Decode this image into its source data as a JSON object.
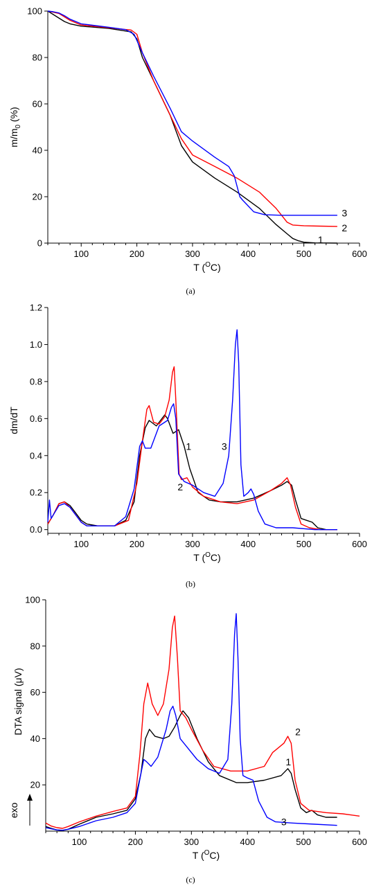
{
  "chart_data": [
    {
      "type": "line",
      "caption": "(a)",
      "xlabel": "T (",
      "xlabel_sup": "O",
      "xlabel_tail": "C)",
      "ylabel": "m/m",
      "ylabel_sub": "0",
      "ylabel_tail": " (%)",
      "xlim": [
        40,
        600
      ],
      "ylim": [
        0,
        100
      ],
      "xticks": [
        100,
        200,
        300,
        400,
        500,
        600
      ],
      "yticks": [
        0,
        20,
        40,
        60,
        80,
        100
      ],
      "grid": false,
      "series": [
        {
          "label": "1",
          "color": "#000000",
          "x": [
            40,
            50,
            60,
            70,
            80,
            100,
            150,
            190,
            200,
            210,
            230,
            260,
            280,
            300,
            340,
            380,
            420,
            450,
            470,
            480,
            490,
            500,
            520,
            560
          ],
          "y": [
            100,
            98.5,
            97,
            95.5,
            94.5,
            93.5,
            92.5,
            91,
            88,
            80,
            70,
            55,
            42,
            35,
            28,
            22,
            15,
            8,
            4,
            2,
            1,
            0.4,
            0.1,
            0
          ]
        },
        {
          "label": "2",
          "color": "#ff0000",
          "x": [
            40,
            50,
            60,
            70,
            80,
            100,
            150,
            190,
            200,
            210,
            230,
            260,
            280,
            300,
            340,
            380,
            420,
            450,
            460,
            470,
            480,
            500,
            530,
            560
          ],
          "y": [
            100,
            99.5,
            99,
            97.5,
            96,
            94,
            92.8,
            91.8,
            90,
            82,
            70,
            55,
            45,
            38,
            33,
            28,
            22,
            15,
            12,
            9,
            7.8,
            7.5,
            7.3,
            7.2
          ]
        },
        {
          "label": "3",
          "color": "#0000ff",
          "x": [
            40,
            50,
            60,
            70,
            80,
            100,
            150,
            180,
            195,
            210,
            230,
            260,
            280,
            300,
            340,
            365,
            375,
            385,
            390,
            400,
            410,
            430,
            460,
            500,
            560
          ],
          "y": [
            100,
            99.7,
            99.2,
            98,
            96.5,
            94.5,
            93,
            92,
            90,
            82,
            72,
            58,
            48,
            44,
            37,
            33,
            29,
            20,
            18.5,
            16,
            13.5,
            12.2,
            12,
            12,
            12
          ]
        }
      ],
      "annotations": [
        {
          "text": "1",
          "x": 530,
          "y": 1.5
        },
        {
          "text": "2",
          "x": 573,
          "y": 6.5
        },
        {
          "text": "3",
          "x": 573,
          "y": 13
        }
      ]
    },
    {
      "type": "line",
      "caption": "(b)",
      "xlabel": "T (",
      "xlabel_sup": "O",
      "xlabel_tail": "C)",
      "ylabel": "dm/dT",
      "ylabel_sub": "",
      "ylabel_tail": "",
      "xlim": [
        40,
        600
      ],
      "ylim": [
        -0.02,
        1.2
      ],
      "xticks": [
        100,
        200,
        300,
        400,
        500,
        600
      ],
      "yticks": [
        0.0,
        0.2,
        0.4,
        0.6,
        0.8,
        1.0,
        1.2
      ],
      "ytick_labels": [
        "0.0",
        "0.2",
        "0.4",
        "0.6",
        "0.8",
        "1.0",
        "1.2"
      ],
      "grid": false,
      "series": [
        {
          "label": "1",
          "color": "#000000",
          "x": [
            40,
            50,
            60,
            70,
            80,
            90,
            100,
            110,
            130,
            160,
            180,
            195,
            205,
            215,
            222,
            235,
            250,
            255,
            265,
            275,
            285,
            295,
            310,
            330,
            350,
            380,
            410,
            440,
            460,
            470,
            478,
            485,
            495,
            505,
            515,
            525,
            540,
            560
          ],
          "y": [
            0.03,
            0.08,
            0.14,
            0.15,
            0.13,
            0.09,
            0.05,
            0.03,
            0.02,
            0.02,
            0.05,
            0.15,
            0.4,
            0.55,
            0.59,
            0.56,
            0.62,
            0.6,
            0.52,
            0.54,
            0.45,
            0.33,
            0.2,
            0.16,
            0.15,
            0.15,
            0.17,
            0.21,
            0.24,
            0.26,
            0.24,
            0.16,
            0.06,
            0.05,
            0.04,
            0.01,
            0.0,
            0.0
          ]
        },
        {
          "label": "2",
          "color": "#ff0000",
          "x": [
            40,
            50,
            60,
            70,
            80,
            90,
            100,
            110,
            130,
            160,
            185,
            200,
            210,
            218,
            222,
            230,
            240,
            250,
            258,
            264,
            267,
            270,
            276,
            280,
            290,
            300,
            320,
            350,
            380,
            410,
            440,
            460,
            470,
            476,
            485,
            495,
            510,
            530,
            560
          ],
          "y": [
            0.03,
            0.08,
            0.14,
            0.15,
            0.12,
            0.08,
            0.04,
            0.02,
            0.02,
            0.02,
            0.05,
            0.25,
            0.48,
            0.65,
            0.67,
            0.58,
            0.57,
            0.61,
            0.7,
            0.85,
            0.88,
            0.7,
            0.3,
            0.27,
            0.28,
            0.23,
            0.18,
            0.15,
            0.14,
            0.16,
            0.21,
            0.25,
            0.28,
            0.24,
            0.12,
            0.03,
            0.01,
            0.0,
            0.0
          ]
        },
        {
          "label": "3",
          "color": "#0000ff",
          "x": [
            40,
            43,
            46,
            50,
            60,
            70,
            80,
            90,
            100,
            110,
            130,
            160,
            180,
            195,
            205,
            210,
            215,
            225,
            240,
            255,
            262,
            266,
            270,
            275,
            285,
            300,
            320,
            340,
            355,
            365,
            372,
            377,
            380,
            383,
            387,
            392,
            400,
            405,
            410,
            418,
            430,
            450,
            480,
            520,
            560
          ],
          "y": [
            0.04,
            0.16,
            0.06,
            0.08,
            0.13,
            0.14,
            0.12,
            0.08,
            0.04,
            0.02,
            0.02,
            0.02,
            0.07,
            0.22,
            0.45,
            0.48,
            0.44,
            0.44,
            0.56,
            0.59,
            0.66,
            0.68,
            0.6,
            0.3,
            0.26,
            0.24,
            0.2,
            0.18,
            0.25,
            0.4,
            0.7,
            1.0,
            1.08,
            0.9,
            0.35,
            0.18,
            0.2,
            0.22,
            0.19,
            0.1,
            0.03,
            0.01,
            0.01,
            0.0,
            0.0
          ]
        }
      ],
      "annotations": [
        {
          "text": "1",
          "x": 293,
          "y": 0.45
        },
        {
          "text": "2",
          "x": 278,
          "y": 0.23
        },
        {
          "text": "3",
          "x": 357,
          "y": 0.45
        }
      ]
    },
    {
      "type": "line",
      "caption": "(c)",
      "xlabel": "T (",
      "xlabel_sup": "O",
      "xlabel_tail": "C)",
      "ylabel": "DTA signal (",
      "ylabel_mu": "μ",
      "ylabel_tail": "V)",
      "side_label": "exo",
      "xlim": [
        40,
        600
      ],
      "ylim": [
        0,
        100
      ],
      "xticks": [
        100,
        200,
        300,
        400,
        500,
        600
      ],
      "yticks": [
        20,
        40,
        60,
        80,
        100
      ],
      "grid": false,
      "series": [
        {
          "label": "1",
          "color": "#000000",
          "x": [
            40,
            50,
            60,
            70,
            80,
            100,
            130,
            160,
            185,
            200,
            210,
            218,
            225,
            235,
            250,
            260,
            270,
            280,
            285,
            295,
            310,
            330,
            350,
            380,
            400,
            430,
            460,
            472,
            478,
            485,
            495,
            505,
            515,
            525,
            540,
            560
          ],
          "y": [
            2,
            1.2,
            0.5,
            0.3,
            0.8,
            3,
            6,
            7.5,
            9,
            14,
            25,
            40,
            44,
            41,
            40,
            41,
            45,
            50,
            52,
            49,
            40,
            30,
            24,
            21,
            21,
            22,
            24,
            27,
            25,
            18,
            10,
            8,
            9,
            7,
            6,
            6
          ]
        },
        {
          "label": "2",
          "color": "#ff0000",
          "x": [
            40,
            50,
            60,
            70,
            80,
            100,
            130,
            160,
            185,
            200,
            208,
            215,
            222,
            230,
            240,
            250,
            260,
            266,
            270,
            275,
            280,
            290,
            300,
            320,
            340,
            370,
            400,
            430,
            445,
            455,
            465,
            472,
            478,
            485,
            495,
            510,
            540,
            570,
            600
          ],
          "y": [
            3.5,
            2.2,
            1.5,
            1.2,
            2,
            4,
            6.5,
            8.5,
            10,
            15,
            33,
            55,
            64,
            55,
            50,
            55,
            70,
            88,
            93,
            75,
            52,
            49,
            44,
            35,
            28,
            26,
            26,
            28,
            34,
            36,
            38,
            41,
            38,
            22,
            12,
            9,
            8,
            7.5,
            6.5
          ]
        },
        {
          "label": "3",
          "color": "#0000ff",
          "x": [
            40,
            50,
            60,
            70,
            80,
            100,
            130,
            160,
            185,
            200,
            210,
            215,
            220,
            228,
            240,
            255,
            262,
            267,
            272,
            280,
            290,
            310,
            330,
            350,
            365,
            372,
            377,
            380,
            383,
            387,
            392,
            400,
            410,
            420,
            435,
            450,
            480,
            520,
            560
          ],
          "y": [
            1.5,
            1,
            0.5,
            0.4,
            0.8,
            2,
            4.5,
            6,
            8,
            12,
            25,
            31,
            30,
            28,
            32,
            44,
            52,
            54,
            50,
            40,
            37,
            31,
            27,
            25,
            31,
            55,
            85,
            94,
            75,
            40,
            24,
            23,
            22,
            13,
            6,
            4,
            3.5,
            3,
            2.5
          ]
        }
      ],
      "annotations": [
        {
          "text": "1",
          "x": 473,
          "y": 30
        },
        {
          "text": "2",
          "x": 490,
          "y": 43
        },
        {
          "text": "3",
          "x": 465,
          "y": 4
        }
      ]
    }
  ]
}
